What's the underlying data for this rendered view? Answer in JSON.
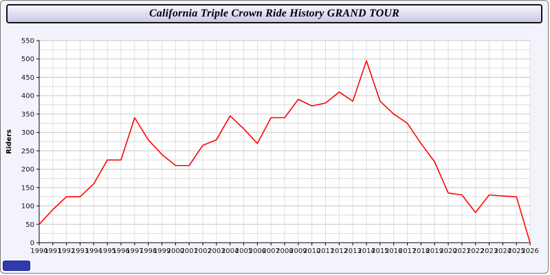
{
  "header": {
    "title": "California Triple Crown Ride History GRAND TOUR"
  },
  "chart_data": {
    "type": "line",
    "title": "California Triple Crown Ride History GRAND TOUR",
    "x": [
      1990,
      1991,
      1992,
      1993,
      1994,
      1995,
      1996,
      1997,
      1998,
      1999,
      2000,
      2001,
      2002,
      2003,
      2004,
      2005,
      2006,
      2007,
      2008,
      2009,
      2010,
      2011,
      2012,
      2013,
      2014,
      2015,
      2016,
      2017,
      2018,
      2019,
      2020,
      2021,
      2022,
      2023,
      2024,
      2025,
      2026
    ],
    "values": [
      50,
      90,
      125,
      125,
      160,
      225,
      225,
      340,
      280,
      240,
      210,
      210,
      265,
      280,
      345,
      310,
      270,
      340,
      340,
      390,
      372,
      380,
      410,
      385,
      495,
      385,
      350,
      325,
      270,
      220,
      135,
      130,
      82,
      130,
      127,
      125,
      0
    ],
    "xlabel": "",
    "ylabel": "Riders",
    "ylim": [
      0,
      550
    ],
    "y_tick_step": 50,
    "y_minor_step": 25,
    "grid": true,
    "legend": "none",
    "line_color": "#ff0000",
    "plot_bg": "#ffffff",
    "grid_minor_color": "#dcdcdc",
    "grid_major_color": "#c6c6c6",
    "axis_color": "#000000",
    "tick_label_color": "#111111"
  },
  "footer": {
    "badge_color": "#2f3ab2"
  }
}
